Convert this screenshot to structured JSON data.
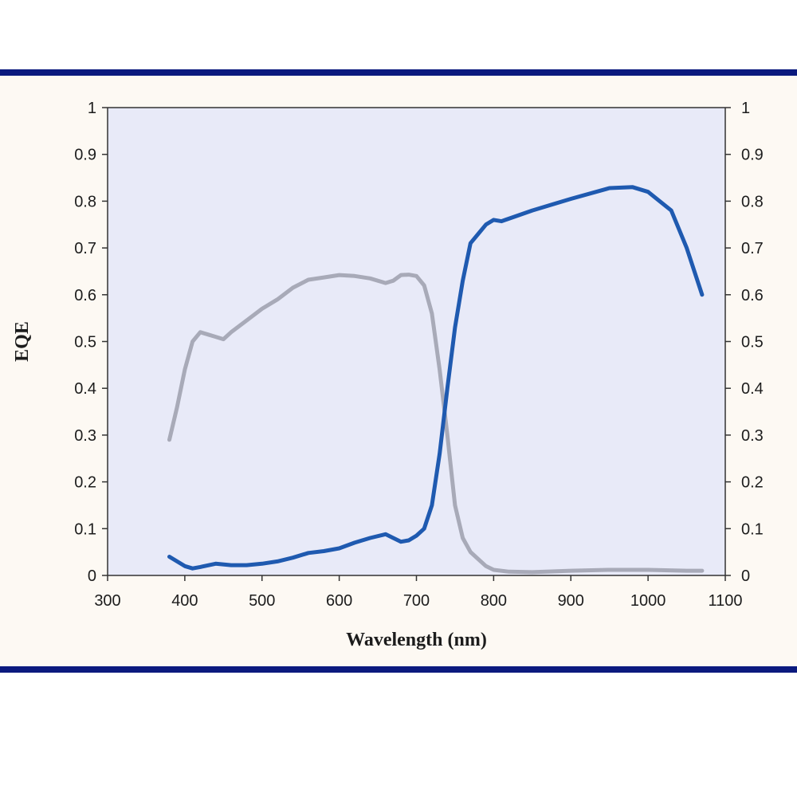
{
  "chart_data": {
    "type": "line",
    "title": "",
    "xlabel": "Wavelength (nm)",
    "ylabel": "EQE",
    "xlim": [
      300,
      1100
    ],
    "ylim": [
      0,
      1
    ],
    "x_ticks": [
      "300",
      "400",
      "500",
      "600",
      "700",
      "800",
      "900",
      "1000",
      "1100"
    ],
    "y_ticks": [
      "0",
      "0.1",
      "0.2",
      "0.3",
      "0.4",
      "0.5",
      "0.6",
      "0.7",
      "0.8",
      "0.9",
      "1"
    ],
    "y2_ticks": [
      "0",
      "0.1",
      "0.2",
      "0.3",
      "0.4",
      "0.5",
      "0.6",
      "0.7",
      "0.8",
      "0.9",
      "1"
    ],
    "grid": false,
    "legend": "none",
    "colors": {
      "plot_bg": "#e8eaf8",
      "panel_bg": "#fdf9f3",
      "frame": "#0b1a7e"
    },
    "series": [
      {
        "color": "#a8aab8",
        "x": [
          380,
          390,
          400,
          410,
          420,
          430,
          440,
          450,
          460,
          480,
          500,
          520,
          540,
          560,
          580,
          600,
          620,
          640,
          660,
          670,
          680,
          690,
          700,
          710,
          720,
          730,
          740,
          750,
          760,
          770,
          780,
          790,
          800,
          820,
          850,
          900,
          950,
          1000,
          1050,
          1070
        ],
        "y": [
          0.29,
          0.36,
          0.44,
          0.5,
          0.52,
          0.515,
          0.51,
          0.505,
          0.52,
          0.545,
          0.57,
          0.59,
          0.615,
          0.632,
          0.637,
          0.642,
          0.64,
          0.635,
          0.625,
          0.63,
          0.642,
          0.643,
          0.64,
          0.62,
          0.56,
          0.44,
          0.3,
          0.15,
          0.08,
          0.05,
          0.035,
          0.02,
          0.012,
          0.008,
          0.007,
          0.01,
          0.012,
          0.012,
          0.01,
          0.01
        ]
      },
      {
        "color": "#1f5ab0",
        "x": [
          380,
          390,
          400,
          410,
          420,
          440,
          460,
          480,
          500,
          520,
          540,
          560,
          580,
          600,
          620,
          640,
          660,
          670,
          680,
          690,
          700,
          710,
          720,
          730,
          740,
          750,
          760,
          770,
          780,
          790,
          800,
          810,
          850,
          900,
          950,
          980,
          1000,
          1030,
          1050,
          1070
        ],
        "y": [
          0.04,
          0.03,
          0.02,
          0.015,
          0.018,
          0.025,
          0.022,
          0.022,
          0.025,
          0.03,
          0.038,
          0.048,
          0.052,
          0.058,
          0.07,
          0.08,
          0.088,
          0.08,
          0.072,
          0.075,
          0.085,
          0.1,
          0.15,
          0.26,
          0.4,
          0.53,
          0.63,
          0.71,
          0.73,
          0.75,
          0.76,
          0.757,
          0.78,
          0.805,
          0.828,
          0.83,
          0.82,
          0.78,
          0.7,
          0.6
        ]
      }
    ]
  }
}
